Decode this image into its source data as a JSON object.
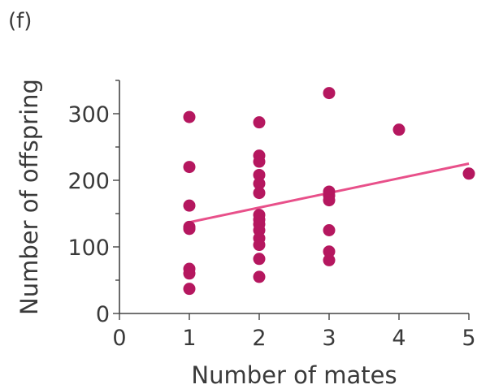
{
  "panel_label": "(f)",
  "colors": {
    "point": "#b5175f",
    "trend_line": "#e8508a",
    "axis": "#444444",
    "text": "#3a3a3a"
  },
  "chart_data": {
    "type": "scatter",
    "title": "",
    "xlabel": "Number of mates",
    "ylabel": "Number of offspring",
    "xlim": [
      0,
      5
    ],
    "ylim": [
      0,
      350
    ],
    "x_ticks": [
      0,
      1,
      2,
      3,
      4,
      5
    ],
    "y_ticks": [
      0,
      100,
      200,
      300
    ],
    "x_tick_labels": [
      "0",
      "1",
      "2",
      "3",
      "4",
      "5"
    ],
    "y_tick_labels": [
      "0",
      "100",
      "200",
      "300"
    ],
    "grid": false,
    "points": [
      {
        "x": 1,
        "y": 295
      },
      {
        "x": 1,
        "y": 220
      },
      {
        "x": 1,
        "y": 162
      },
      {
        "x": 1,
        "y": 130
      },
      {
        "x": 1,
        "y": 127
      },
      {
        "x": 1,
        "y": 67
      },
      {
        "x": 1,
        "y": 60
      },
      {
        "x": 1,
        "y": 37
      },
      {
        "x": 2,
        "y": 287
      },
      {
        "x": 2,
        "y": 237
      },
      {
        "x": 2,
        "y": 228
      },
      {
        "x": 2,
        "y": 208
      },
      {
        "x": 2,
        "y": 195
      },
      {
        "x": 2,
        "y": 181
      },
      {
        "x": 2,
        "y": 148
      },
      {
        "x": 2,
        "y": 141
      },
      {
        "x": 2,
        "y": 134
      },
      {
        "x": 2,
        "y": 125
      },
      {
        "x": 2,
        "y": 113
      },
      {
        "x": 2,
        "y": 103
      },
      {
        "x": 2,
        "y": 82
      },
      {
        "x": 2,
        "y": 55
      },
      {
        "x": 3,
        "y": 331
      },
      {
        "x": 3,
        "y": 183
      },
      {
        "x": 3,
        "y": 177
      },
      {
        "x": 3,
        "y": 170
      },
      {
        "x": 3,
        "y": 125
      },
      {
        "x": 3,
        "y": 93
      },
      {
        "x": 3,
        "y": 80
      },
      {
        "x": 4,
        "y": 276
      },
      {
        "x": 5,
        "y": 210
      }
    ],
    "trend_line": {
      "x": [
        1,
        5
      ],
      "y": [
        137,
        225
      ]
    }
  }
}
